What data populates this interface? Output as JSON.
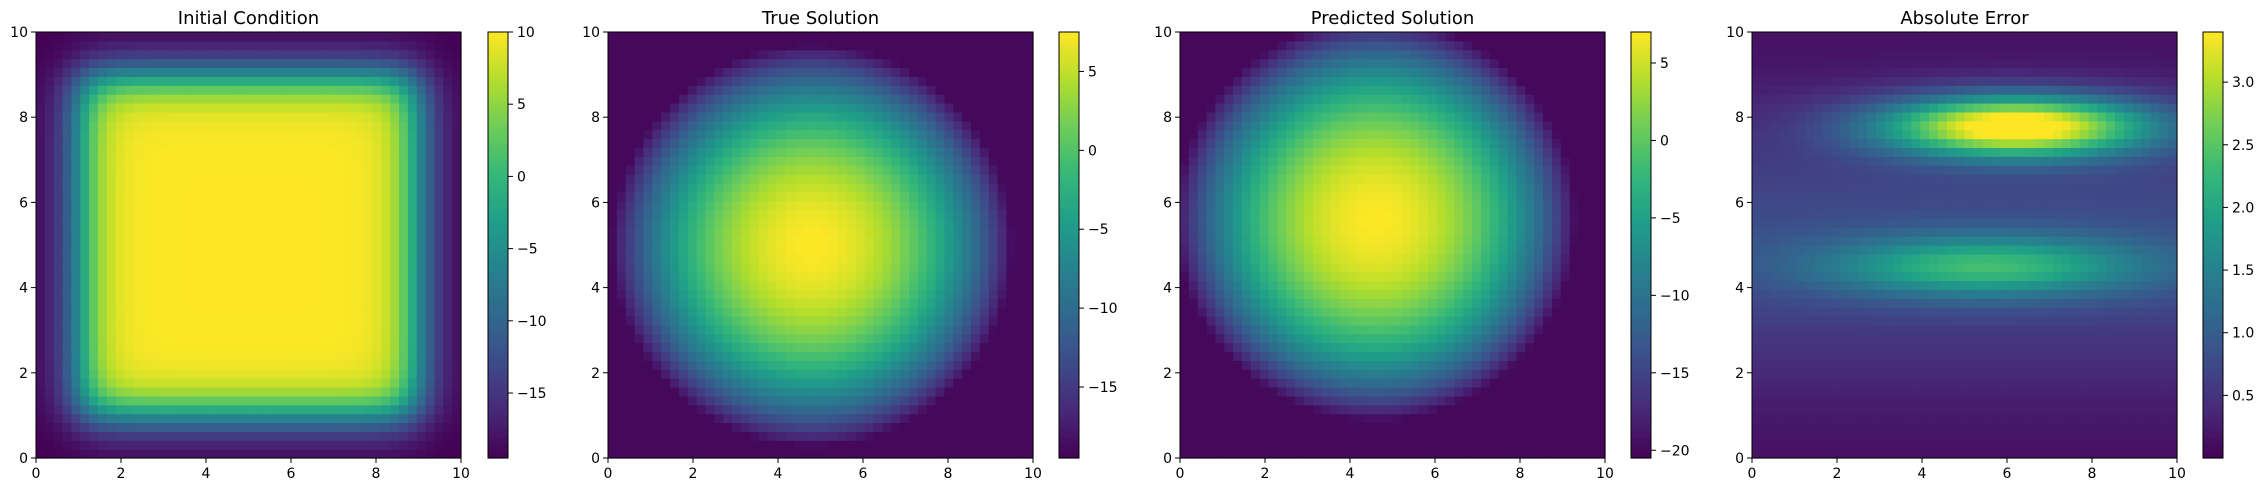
{
  "chart_data": [
    {
      "type": "heatmap",
      "title": "Initial Condition",
      "x_ticks": [
        "0",
        "2",
        "4",
        "6",
        "8",
        "10"
      ],
      "y_ticks": [
        "0",
        "2",
        "4",
        "6",
        "8",
        "10"
      ],
      "xlim": [
        0,
        10
      ],
      "ylim": [
        0,
        10
      ],
      "colorbar": {
        "range": [
          -19.5,
          10
        ],
        "ticks": [
          10,
          5,
          0,
          -5,
          -10,
          -15
        ],
        "tick_labels": [
          "10",
          "5",
          "0",
          "−5",
          "−10",
          "−15"
        ]
      },
      "field": {
        "kind": "square",
        "inner": 10,
        "outer": -19.5,
        "x0": 1,
        "x1": 9,
        "y0": 1,
        "y1": 9
      }
    },
    {
      "type": "heatmap",
      "title": "True Solution",
      "x_ticks": [
        "0",
        "2",
        "4",
        "6",
        "8",
        "10"
      ],
      "y_ticks": [
        "0",
        "2",
        "4",
        "6",
        "8",
        "10"
      ],
      "xlim": [
        0,
        10
      ],
      "ylim": [
        0,
        10
      ],
      "colorbar": {
        "range": [
          -19.5,
          7.5
        ],
        "ticks": [
          5,
          0,
          -5,
          -10,
          -15
        ],
        "tick_labels": [
          "5",
          "0",
          "−5",
          "−10",
          "−15"
        ]
      },
      "field": {
        "kind": "bump",
        "center": [
          4.8,
          5.0
        ],
        "peak": 7.5,
        "floor": -19.5
      }
    },
    {
      "type": "heatmap",
      "title": "Predicted Solution",
      "x_ticks": [
        "0",
        "2",
        "4",
        "6",
        "8",
        "10"
      ],
      "y_ticks": [
        "0",
        "2",
        "4",
        "6",
        "8",
        "10"
      ],
      "xlim": [
        0,
        10
      ],
      "ylim": [
        0,
        10
      ],
      "colorbar": {
        "range": [
          -20.5,
          7.0
        ],
        "ticks": [
          5,
          0,
          -5,
          -10,
          -15,
          -20
        ],
        "tick_labels": [
          "5",
          "0",
          "−5",
          "−10",
          "−15",
          "−20"
        ]
      },
      "field": {
        "kind": "bump",
        "center": [
          4.6,
          5.6
        ],
        "peak": 7.0,
        "floor": -20.5
      }
    },
    {
      "type": "heatmap",
      "title": "Absolute Error",
      "x_ticks": [
        "0",
        "2",
        "4",
        "6",
        "8",
        "10"
      ],
      "y_ticks": [
        "0",
        "2",
        "4",
        "6",
        "8",
        "10"
      ],
      "xlim": [
        0,
        10
      ],
      "ylim": [
        0,
        10
      ],
      "colorbar": {
        "range": [
          0.0,
          3.4
        ],
        "ticks": [
          3.0,
          2.5,
          2.0,
          1.5,
          1.0,
          0.5
        ],
        "tick_labels": [
          "3.0",
          "2.5",
          "2.0",
          "1.5",
          "1.0",
          "0.5"
        ]
      },
      "field": {
        "kind": "bands",
        "floor": 0.1,
        "base": 0.8,
        "bands": [
          {
            "x": 6.2,
            "y": 7.8,
            "sx": 2.2,
            "sy": 0.5,
            "amp": 3.4
          },
          {
            "x": 5.5,
            "y": 4.5,
            "sx": 2.6,
            "sy": 0.5,
            "amp": 1.6
          }
        ]
      }
    }
  ]
}
